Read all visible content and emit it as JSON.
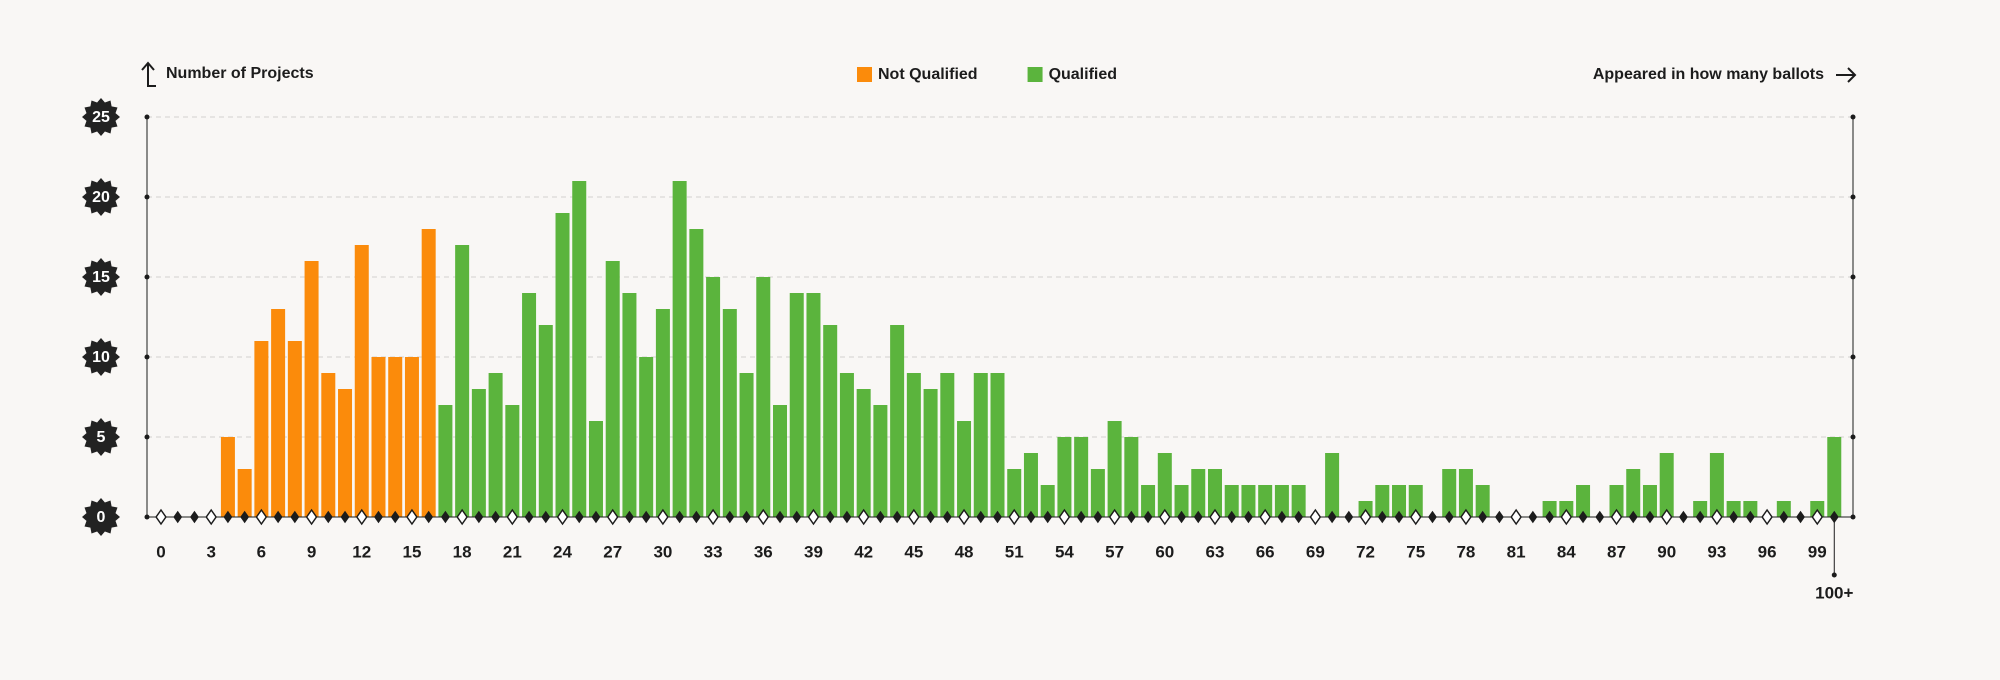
{
  "chart_data": {
    "type": "bar",
    "y_label": "Number of Projects",
    "x_label": "Appeared in how many ballots",
    "categories": [
      "0",
      null,
      null,
      "3",
      null,
      null,
      "6",
      null,
      null,
      "9",
      null,
      null,
      "12",
      null,
      null,
      "15",
      null,
      null,
      "18",
      null,
      null,
      "21",
      null,
      null,
      "24",
      null,
      null,
      "27",
      null,
      null,
      "30",
      null,
      null,
      "33",
      null,
      null,
      "36",
      null,
      null,
      "39",
      null,
      null,
      "42",
      null,
      null,
      "45",
      null,
      null,
      "48",
      null,
      null,
      "51",
      null,
      null,
      "54",
      null,
      null,
      "57",
      null,
      null,
      "60",
      null,
      null,
      "63",
      null,
      null,
      "66",
      null,
      null,
      "69",
      null,
      null,
      "72",
      null,
      null,
      "75",
      null,
      null,
      "78",
      null,
      null,
      "81",
      null,
      null,
      "84",
      null,
      null,
      "87",
      null,
      null,
      "90",
      null,
      null,
      "93",
      null,
      null,
      "96",
      null,
      null,
      "99",
      "100+"
    ],
    "series": [
      {
        "name": "Not Qualified",
        "color": "#fb8b0b",
        "values": [
          0,
          0,
          0,
          0,
          5,
          3,
          11,
          13,
          11,
          16,
          9,
          8,
          17,
          10,
          10,
          10,
          18,
          null,
          null,
          null,
          null,
          null,
          null,
          null,
          null,
          null,
          null,
          null,
          null,
          null,
          null,
          null,
          null,
          null,
          null,
          null,
          null,
          null,
          null,
          null,
          null,
          null,
          null,
          null,
          null,
          null,
          null,
          null,
          null,
          null,
          null,
          null,
          null,
          null,
          null,
          null,
          null,
          null,
          null,
          null,
          null,
          null,
          null,
          null,
          null,
          null,
          null,
          null,
          null,
          null,
          null,
          null,
          null,
          null,
          null,
          null,
          null,
          null,
          null,
          null,
          null,
          null,
          null,
          null,
          null,
          null,
          null,
          null,
          null,
          null,
          null,
          null,
          null,
          null,
          null,
          null,
          null,
          null,
          null,
          null,
          null
        ]
      },
      {
        "name": "Qualified",
        "color": "#5bb43d",
        "values": [
          null,
          null,
          null,
          null,
          null,
          null,
          null,
          null,
          null,
          null,
          null,
          null,
          null,
          null,
          null,
          null,
          null,
          7,
          17,
          8,
          9,
          7,
          14,
          12,
          19,
          21,
          6,
          16,
          14,
          10,
          13,
          21,
          18,
          15,
          13,
          9,
          15,
          7,
          14,
          14,
          12,
          9,
          8,
          7,
          12,
          9,
          8,
          9,
          6,
          9,
          9,
          3,
          4,
          2,
          5,
          5,
          3,
          6,
          5,
          2,
          4,
          2,
          3,
          3,
          2,
          2,
          2,
          2,
          2,
          0,
          4,
          0,
          1,
          2,
          2,
          2,
          0,
          3,
          3,
          2,
          0,
          0,
          0,
          1,
          1,
          2,
          0,
          2,
          3,
          2,
          4,
          0,
          1,
          4,
          1,
          1,
          0,
          1,
          0,
          1,
          5
        ]
      }
    ],
    "ylim": [
      0,
      25
    ],
    "yticks": [
      0,
      5,
      10,
      15,
      20,
      25
    ],
    "grid": true,
    "legend": "top"
  }
}
